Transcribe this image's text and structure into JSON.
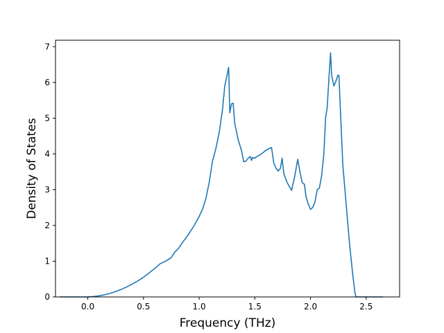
{
  "chart_data": {
    "type": "line",
    "title": "",
    "xlabel": "Frequency (THz)",
    "ylabel": "Density of States",
    "xlim": [
      -0.29,
      2.8
    ],
    "ylim": [
      0,
      7.18
    ],
    "xticks": [
      {
        "value": 0.0,
        "label": "0.0"
      },
      {
        "value": 0.5,
        "label": "0.5"
      },
      {
        "value": 1.0,
        "label": "1.0"
      },
      {
        "value": 1.5,
        "label": "1.5"
      },
      {
        "value": 2.0,
        "label": "2.0"
      },
      {
        "value": 2.5,
        "label": "2.5"
      }
    ],
    "yticks": [
      {
        "value": 0,
        "label": "0"
      },
      {
        "value": 1,
        "label": "1"
      },
      {
        "value": 2,
        "label": "2"
      },
      {
        "value": 3,
        "label": "3"
      },
      {
        "value": 4,
        "label": "4"
      },
      {
        "value": 5,
        "label": "5"
      },
      {
        "value": 6,
        "label": "6"
      },
      {
        "value": 7,
        "label": "7"
      }
    ],
    "grid": false,
    "legend": false,
    "series": [
      {
        "color": "#1f77b4",
        "x": [
          -0.25,
          -0.1,
          0.0,
          0.05,
          0.1,
          0.15,
          0.2,
          0.25,
          0.3,
          0.35,
          0.4,
          0.45,
          0.5,
          0.55,
          0.6,
          0.65,
          0.7,
          0.75,
          0.78,
          0.82,
          0.85,
          0.9,
          0.95,
          1.0,
          1.03,
          1.06,
          1.09,
          1.12,
          1.15,
          1.18,
          1.21,
          1.23,
          1.25,
          1.265,
          1.275,
          1.29,
          1.305,
          1.32,
          1.35,
          1.38,
          1.4,
          1.42,
          1.44,
          1.46,
          1.47,
          1.48,
          1.5,
          1.52,
          1.55,
          1.6,
          1.63,
          1.65,
          1.67,
          1.69,
          1.71,
          1.73,
          1.745,
          1.76,
          1.79,
          1.83,
          1.86,
          1.885,
          1.905,
          1.925,
          1.945,
          1.96,
          1.98,
          2.0,
          2.02,
          2.04,
          2.06,
          2.08,
          2.1,
          2.12,
          2.135,
          2.15,
          2.165,
          2.18,
          2.19,
          2.21,
          2.23,
          2.245,
          2.255,
          2.27,
          2.29,
          2.32,
          2.35,
          2.38,
          2.4,
          2.41,
          2.42,
          2.45,
          2.5,
          2.55,
          2.65
        ],
        "y": [
          0,
          0,
          0,
          0.01,
          0.03,
          0.06,
          0.1,
          0.15,
          0.21,
          0.28,
          0.36,
          0.45,
          0.55,
          0.67,
          0.79,
          0.93,
          1.0,
          1.1,
          1.25,
          1.38,
          1.52,
          1.73,
          1.97,
          2.25,
          2.45,
          2.75,
          3.2,
          3.8,
          4.15,
          4.6,
          5.25,
          5.9,
          6.2,
          6.42,
          5.15,
          5.4,
          5.42,
          4.85,
          4.4,
          4.1,
          3.78,
          3.8,
          3.88,
          3.93,
          3.82,
          3.9,
          3.88,
          3.93,
          3.98,
          4.1,
          4.15,
          4.18,
          3.75,
          3.6,
          3.52,
          3.6,
          3.88,
          3.45,
          3.2,
          2.98,
          3.4,
          3.85,
          3.5,
          3.2,
          3.15,
          2.8,
          2.6,
          2.45,
          2.5,
          2.65,
          3.0,
          3.05,
          3.4,
          4.0,
          5.0,
          5.3,
          6.1,
          6.83,
          6.2,
          5.9,
          6.05,
          6.2,
          6.2,
          5.1,
          3.7,
          2.6,
          1.5,
          0.6,
          0.1,
          0.0,
          0.0,
          0.0,
          0.0,
          0.0,
          0.0
        ]
      }
    ]
  }
}
